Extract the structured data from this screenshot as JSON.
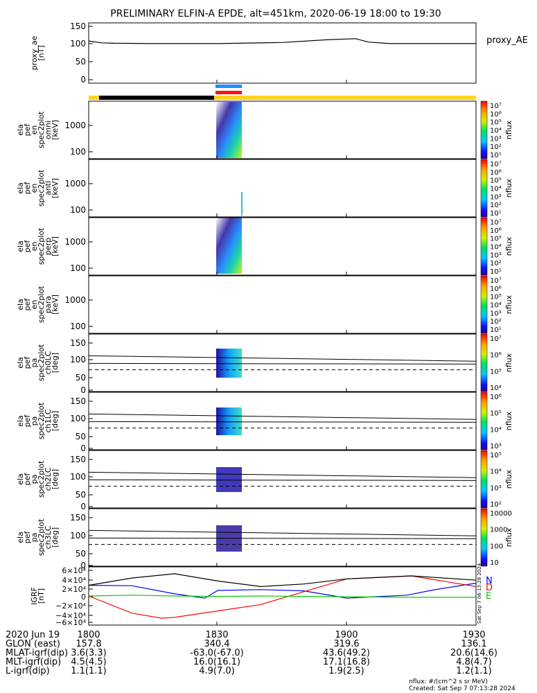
{
  "title": "PRELIMINARY ELFIN-A EPDE, alt=451km, 2020-06-19 18:00 to 19:30",
  "legend_right": "proxy_AE",
  "colors": {
    "orbit_bar_night": "#000000",
    "orbit_bar_day": "#ffd21f",
    "science_marker_blue": "#1e90ff",
    "science_marker_red": "#ff1010",
    "grf_n": "#0000ff",
    "grf_d": "#ff0000",
    "grf_e": "#00cc00",
    "grf_total": "#000000"
  },
  "panels": [
    {
      "ylabel_lines": [
        "proxy_ae",
        "[nT]"
      ],
      "ticks": [
        "150",
        "100",
        "50",
        "0"
      ]
    },
    {
      "ylabel_lines": [
        "ela",
        "pef",
        "en",
        "spec2plot",
        "omni",
        "[keV]"
      ],
      "ticks": [
        "1000",
        "100"
      ]
    },
    {
      "ylabel_lines": [
        "ela",
        "pef",
        "en",
        "spec2plot",
        "anti",
        "[keV]"
      ],
      "ticks": [
        "1000",
        "100"
      ]
    },
    {
      "ylabel_lines": [
        "ela",
        "pef",
        "en",
        "spec2plot",
        "perp",
        "[keV]"
      ],
      "ticks": [
        "1000",
        "100"
      ]
    },
    {
      "ylabel_lines": [
        "ela",
        "pef",
        "en",
        "spec2plot",
        "para",
        "[keV]"
      ],
      "ticks": [
        "1000",
        "100"
      ]
    },
    {
      "ylabel_lines": [
        "ela",
        "pef",
        "pa",
        "spec2plot",
        "ch0LC",
        "[deg]"
      ],
      "ticks": [
        "150",
        "100",
        "50",
        "0"
      ]
    },
    {
      "ylabel_lines": [
        "ela",
        "pef",
        "pa",
        "spec2plot",
        "ch1LC",
        "[deg]"
      ],
      "ticks": [
        "150",
        "100",
        "50",
        "0"
      ]
    },
    {
      "ylabel_lines": [
        "ela",
        "pef",
        "pa",
        "spec2plot",
        "ch2LC",
        "[deg]"
      ],
      "ticks": [
        "150",
        "100",
        "50",
        "0"
      ]
    },
    {
      "ylabel_lines": [
        "ela",
        "pef",
        "pa",
        "spec2plot",
        "ch3LC",
        "[deg]"
      ],
      "ticks": [
        "150",
        "100",
        "50",
        "0"
      ]
    },
    {
      "ylabel_lines": [
        "IGRF",
        "[nT]"
      ],
      "ticks": [
        "6×10⁴",
        "4×10⁴",
        "2×10⁴",
        "0",
        "−2×10⁴",
        "−4×10⁴",
        "−6×10⁴"
      ]
    }
  ],
  "colorbars": [
    {
      "label": "nflux",
      "ticks": [
        "10⁷",
        "10⁶",
        "10⁵",
        "10⁴",
        "10³",
        "10²",
        "10¹"
      ]
    },
    {
      "label": "nflux",
      "ticks": [
        "10⁷",
        "10⁶",
        "10⁵",
        "10⁴",
        "10³",
        "10²",
        "10¹"
      ]
    },
    {
      "label": "nflux",
      "ticks": [
        "10⁷",
        "10⁶",
        "10⁵",
        "10⁴",
        "10³",
        "10²",
        "10¹"
      ]
    },
    {
      "label": "nflux",
      "ticks": [
        "10⁷",
        "10⁶",
        "10⁵",
        "10⁴",
        "10³",
        "10²",
        "10¹"
      ]
    },
    {
      "label": "nflux",
      "ticks": [
        "10⁷",
        "10⁶",
        "10⁵",
        "10⁴"
      ]
    },
    {
      "label": "nflux",
      "ticks": [
        "10⁶",
        "10⁵",
        "10⁴",
        "10³"
      ]
    },
    {
      "label": "nflux",
      "ticks": [
        "10⁵",
        "10⁴",
        "10³",
        "10²"
      ]
    },
    {
      "label": "nflux",
      "ticks": [
        "10000",
        "1000",
        "100",
        "10"
      ]
    }
  ],
  "grf_legend": [
    "N",
    "D",
    "E"
  ],
  "side_stamp": "Sat Sep  7 06:13:28 2024",
  "footer": {
    "rows": [
      {
        "label": "2020 Jun 19",
        "values": [
          "1800",
          "1830",
          "1900",
          "1930"
        ]
      },
      {
        "label": "GLON (east)",
        "values": [
          "157.8",
          "340.4",
          "319.6",
          "136.1"
        ]
      },
      {
        "label": "MLAT-igrf(dip)",
        "values": [
          "3.6(3.3)",
          "-63.0(-67.0)",
          "43.6(49.2)",
          "20.6(14.6)"
        ]
      },
      {
        "label": "MLT-igrf(dip)",
        "values": [
          "4.5(4.5)",
          "16.0(16.1)",
          "17.1(16.8)",
          "4.8(4.7)"
        ]
      },
      {
        "label": "L-igrf(dip)",
        "values": [
          "1.1(1.1)",
          "4.9(7.0)",
          "1.9(2.5)",
          "1.2(1.1)"
        ]
      }
    ],
    "nflux_note": "nflux: #/(cm^2 s sr MeV)",
    "created": "Created: Sat Sep  7 07:13:28 2024"
  },
  "chart_data": {
    "type": "line",
    "x_range_minutes": [
      0,
      90
    ],
    "proxy_ae": {
      "x": [
        0,
        3,
        6,
        15,
        30,
        45,
        55,
        62,
        65,
        70,
        80,
        90
      ],
      "y": [
        112,
        107,
        106,
        105,
        105,
        108,
        115,
        118,
        109,
        105,
        105,
        105
      ],
      "ylim": [
        0,
        160
      ]
    },
    "loss_cone_lines": {
      "upper": [
        112,
        95
      ],
      "middle": [
        88,
        86
      ],
      "dashed": [
        68,
        68
      ]
    },
    "igrf": {
      "ylim": [
        -65000,
        65000
      ],
      "series": [
        {
          "name": "N",
          "x": [
            0,
            10,
            20,
            27,
            30,
            40,
            50,
            60,
            74,
            80,
            90
          ],
          "y": [
            25000,
            24000,
            5000,
            -5000,
            13000,
            15000,
            12000,
            -5000,
            2000,
            14000,
            30000
          ]
        },
        {
          "name": "D",
          "x": [
            0,
            10,
            17,
            20,
            30,
            40,
            50,
            60,
            75,
            90
          ],
          "y": [
            0,
            -40000,
            -52000,
            -50000,
            -35000,
            -20000,
            10000,
            40000,
            47000,
            22000
          ]
        },
        {
          "name": "E",
          "x": [
            0,
            10,
            20,
            30,
            40,
            50,
            60,
            75,
            90
          ],
          "y": [
            0,
            2000,
            0,
            -1000,
            0,
            -1000,
            -2000,
            -3000,
            -3000
          ]
        },
        {
          "name": "",
          "x": [
            0,
            10,
            20,
            30,
            40,
            50,
            60,
            75,
            90
          ],
          "y": [
            25000,
            42000,
            52000,
            35000,
            22000,
            28000,
            40000,
            47000,
            37000
          ]
        }
      ]
    }
  }
}
